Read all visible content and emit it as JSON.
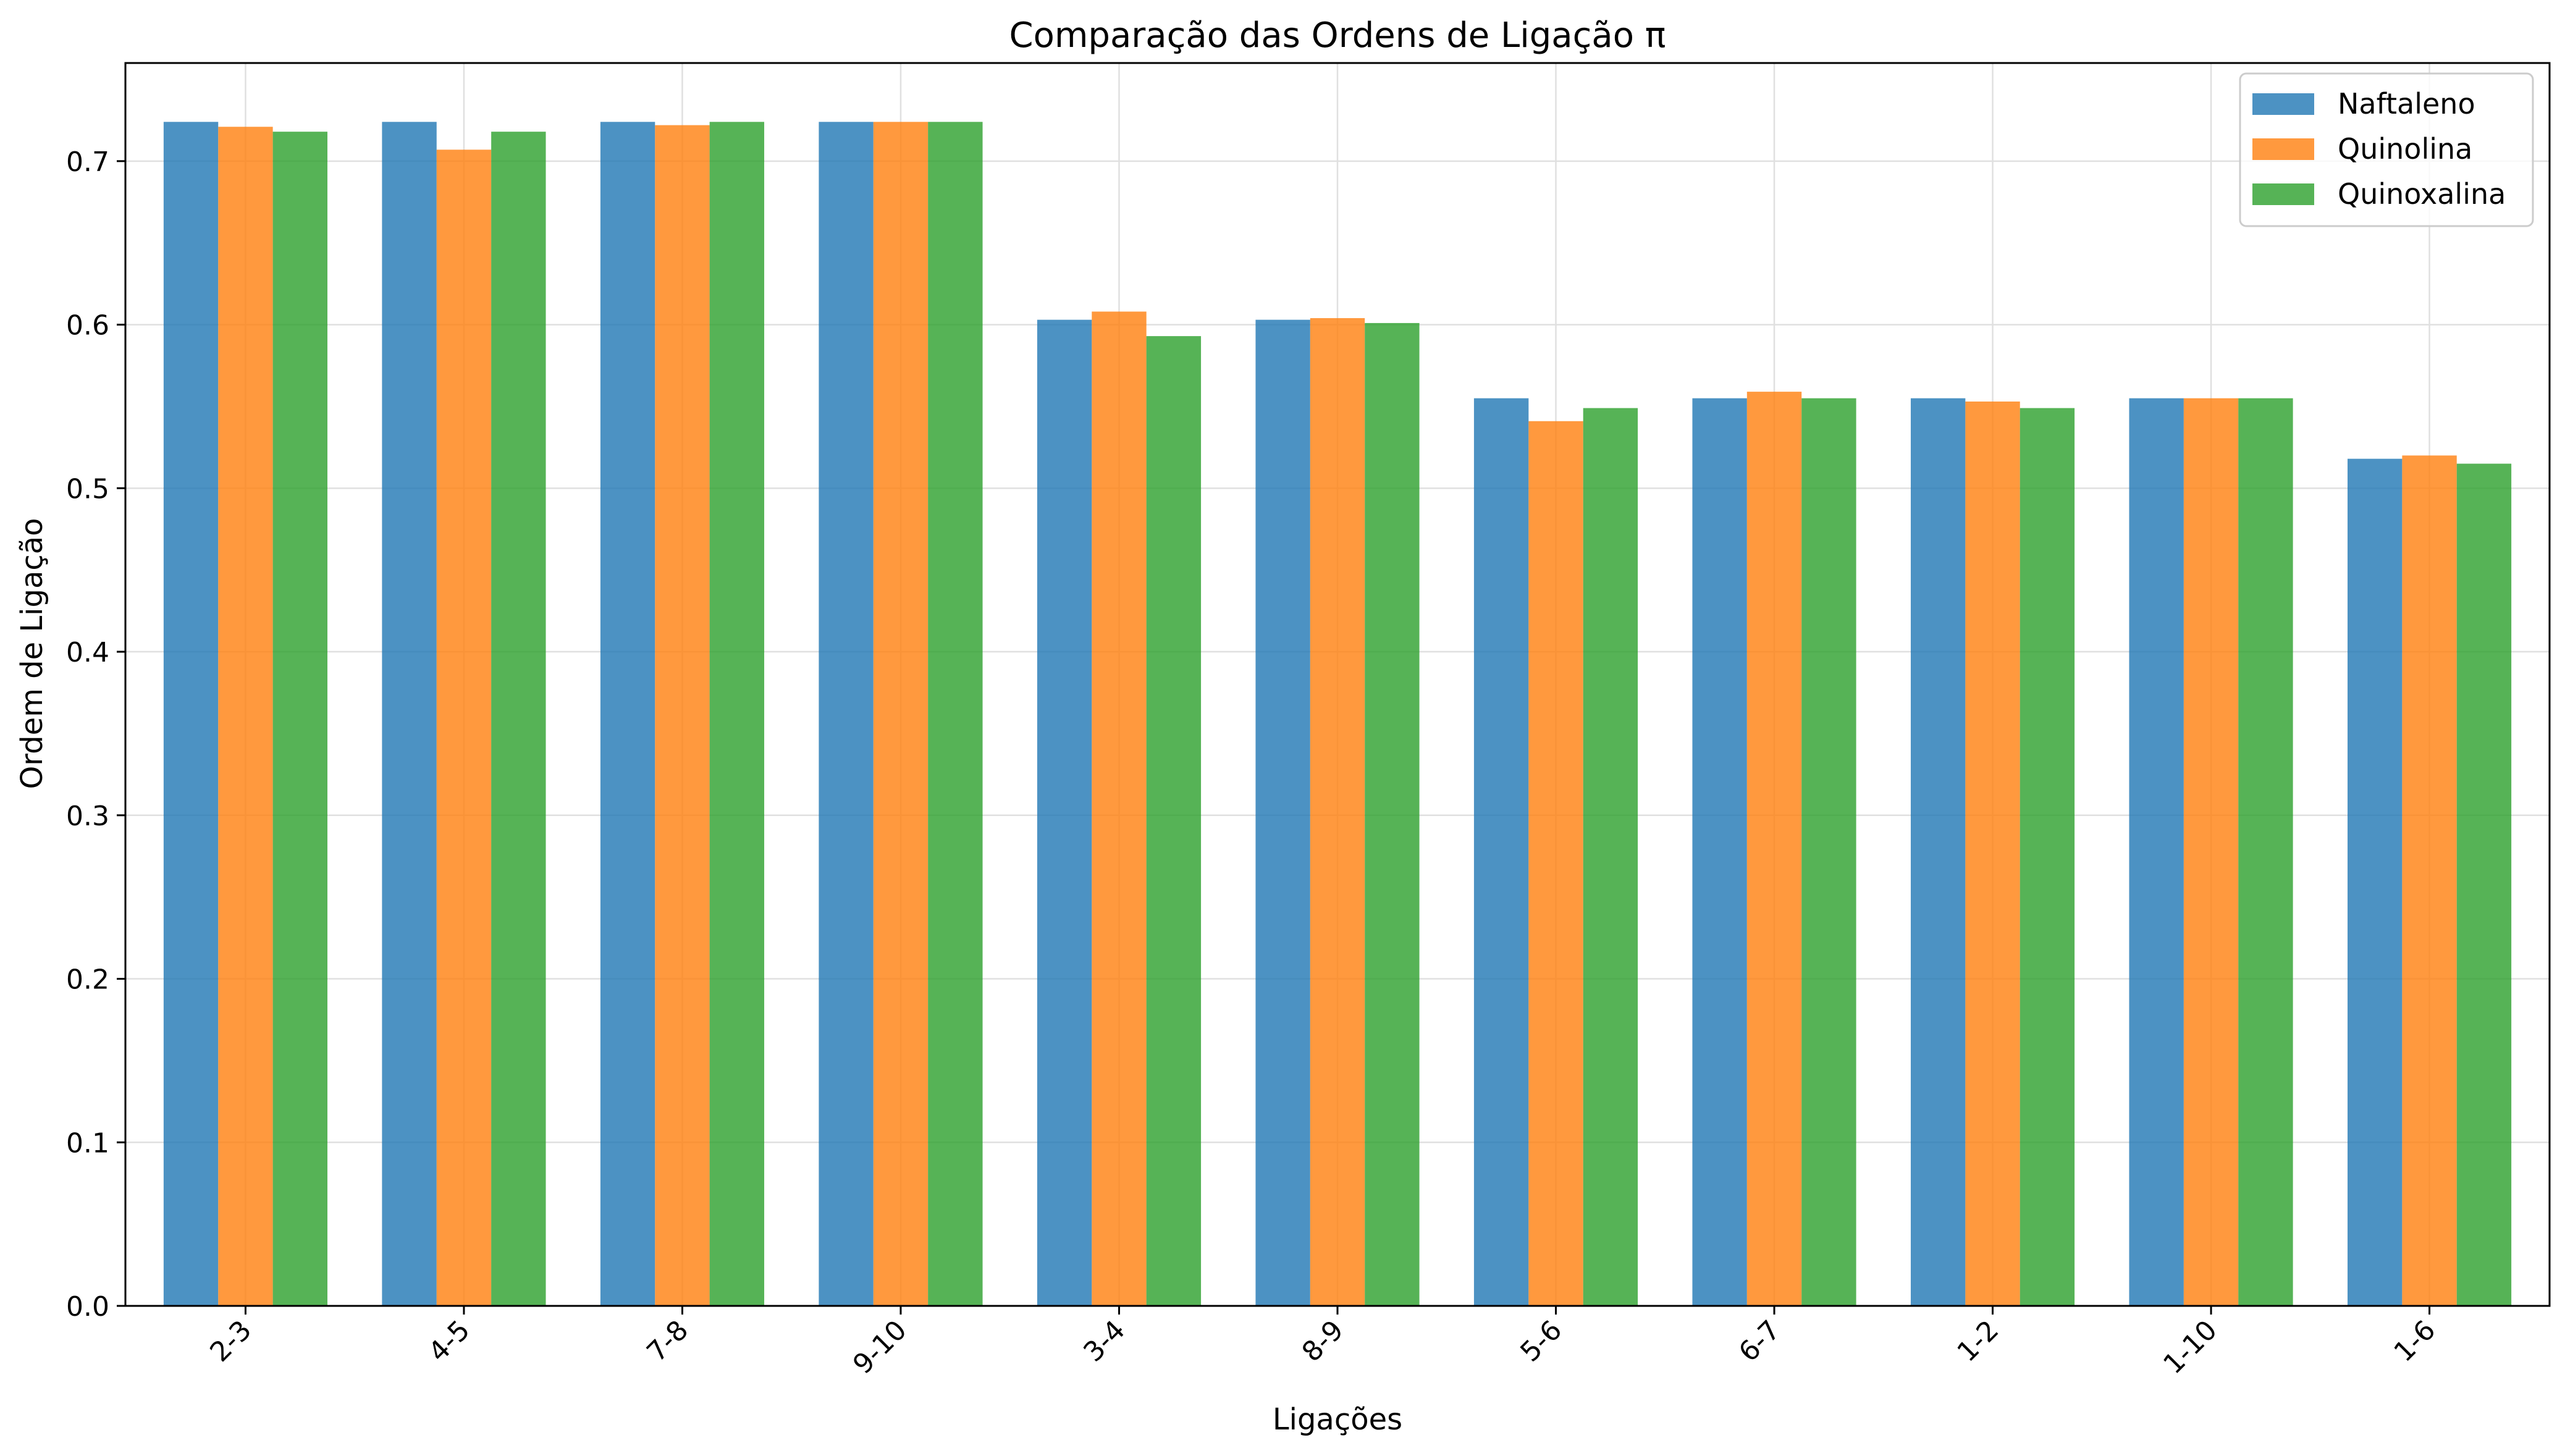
{
  "chart_data": {
    "type": "bar",
    "title": "Comparação das Ordens de Ligação π",
    "xlabel": "Ligações",
    "ylabel": "Ordem de Ligação",
    "categories": [
      "2-3",
      "4-5",
      "7-8",
      "9-10",
      "3-4",
      "8-9",
      "5-6",
      "6-7",
      "1-2",
      "1-10",
      "1-6"
    ],
    "series": [
      {
        "name": "Naftaleno",
        "color": "#1f77b4",
        "values": [
          0.724,
          0.724,
          0.724,
          0.724,
          0.603,
          0.603,
          0.555,
          0.555,
          0.555,
          0.555,
          0.518
        ]
      },
      {
        "name": "Quinolina",
        "color": "#ff7f0e",
        "values": [
          0.721,
          0.707,
          0.722,
          0.724,
          0.608,
          0.604,
          0.541,
          0.559,
          0.553,
          0.555,
          0.52
        ]
      },
      {
        "name": "Quinoxalina",
        "color": "#2ca02c",
        "values": [
          0.718,
          0.718,
          0.724,
          0.724,
          0.593,
          0.601,
          0.549,
          0.555,
          0.549,
          0.555,
          0.515
        ]
      }
    ],
    "ylim": [
      0,
      0.76
    ],
    "yticks": [
      0.0,
      0.1,
      0.2,
      0.3,
      0.4,
      0.5,
      0.6,
      0.7
    ],
    "ytick_labels": [
      "0.0",
      "0.1",
      "0.2",
      "0.3",
      "0.4",
      "0.5",
      "0.6",
      "0.7"
    ],
    "grid": true,
    "legend_position": "top-right",
    "bar_opacity": 0.8
  }
}
